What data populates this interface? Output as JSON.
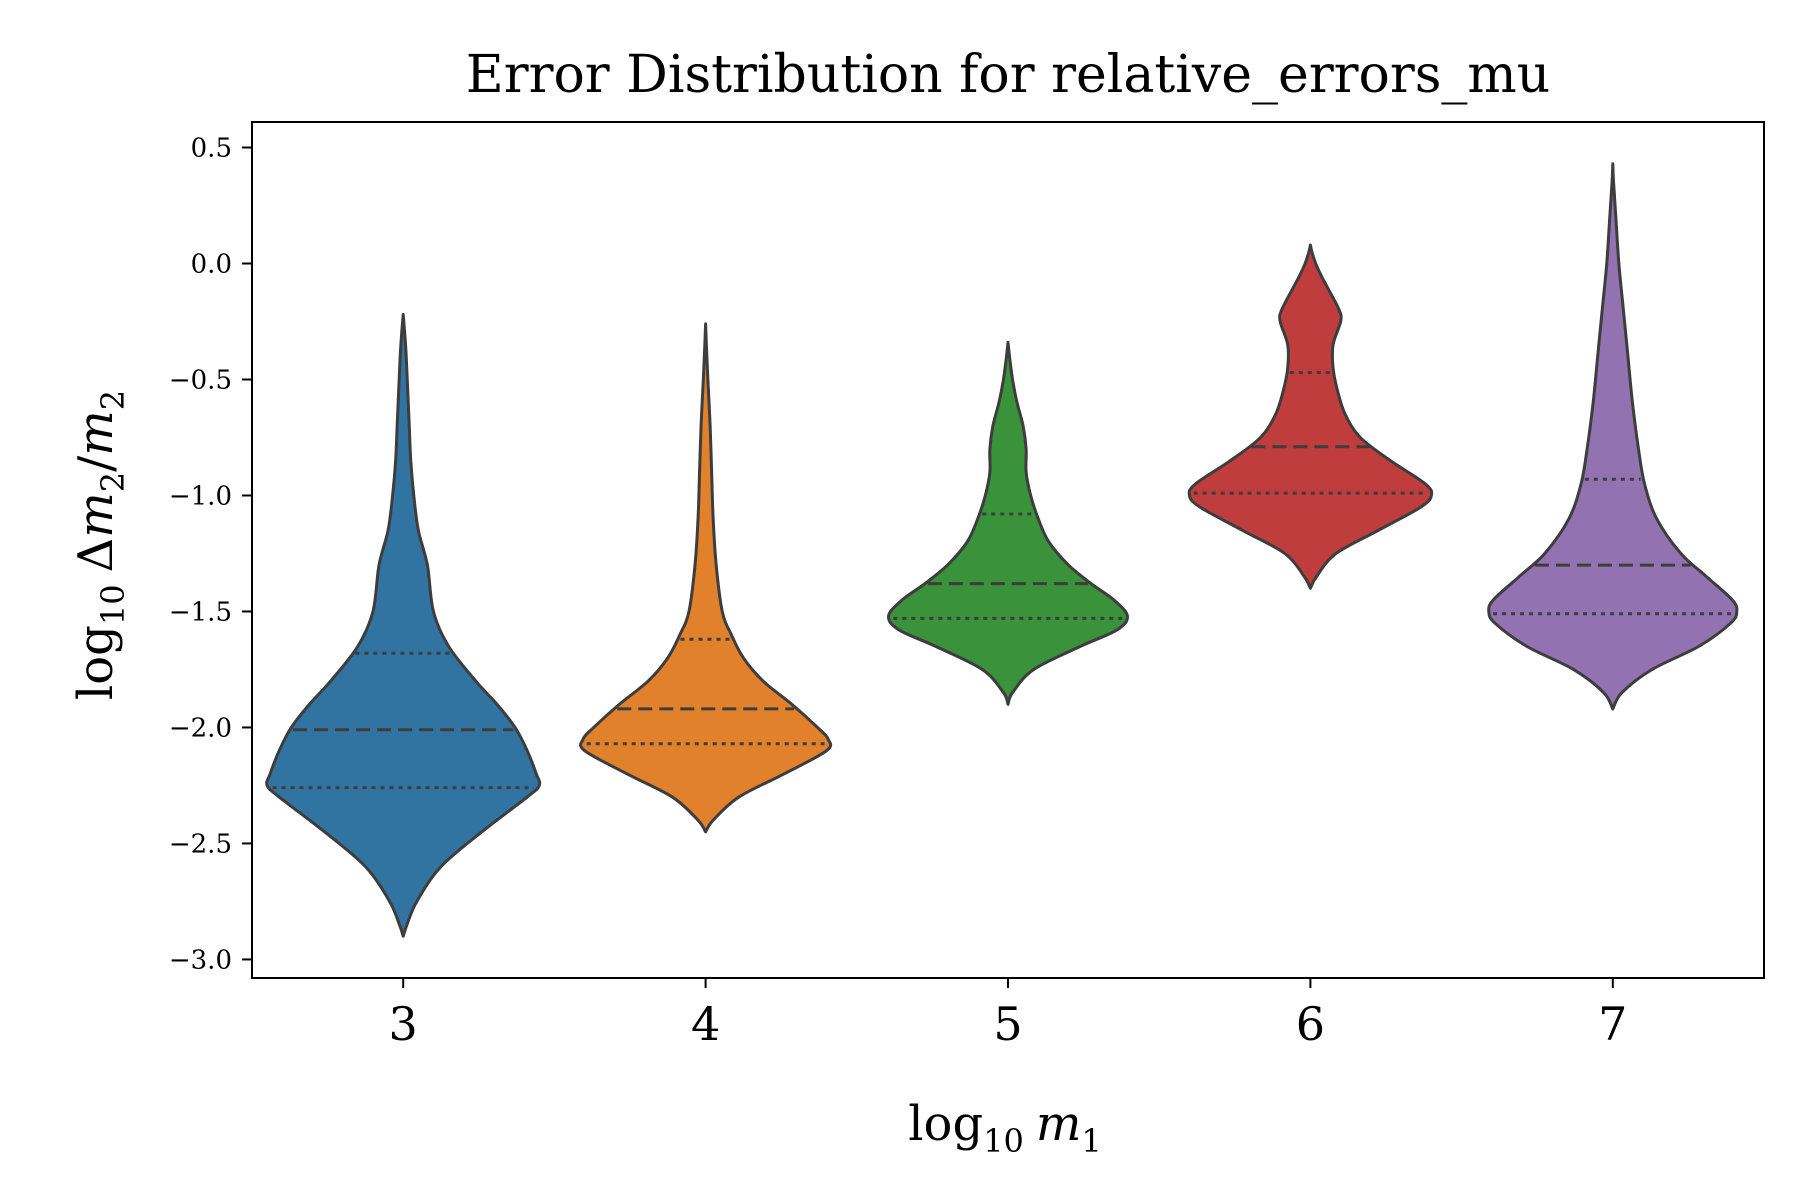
{
  "chart_data": {
    "type": "violin",
    "title": "Error Distribution for relative_errors_mu",
    "xlabel": {
      "base": "log",
      "sub": "10",
      "var": "m",
      "var_sub": "1"
    },
    "ylabel": {
      "base": "log",
      "sub": "10",
      "delta": "Δ",
      "var": "m",
      "var_sub": "2",
      "slash": "/",
      "var2": "m",
      "var2_sub": "2"
    },
    "ylim": [
      -3.08,
      0.61
    ],
    "yticks": [
      0.5,
      0.0,
      -0.5,
      -1.0,
      -1.5,
      -2.0,
      -2.5,
      -3.0
    ],
    "ytick_labels": [
      "0.5",
      "0.0",
      "−0.5",
      "−1.0",
      "−1.5",
      "−2.0",
      "−2.5",
      "−3.0"
    ],
    "categories": [
      "3",
      "4",
      "5",
      "6",
      "7"
    ],
    "grid": false,
    "series": [
      {
        "category": "3",
        "color": "#3274a1",
        "q1": -2.26,
        "median": -2.01,
        "q3": -1.68,
        "profile": [
          [
            -2.9,
            0.0
          ],
          [
            -2.85,
            0.025
          ],
          [
            -2.75,
            0.09
          ],
          [
            -2.6,
            0.25
          ],
          [
            -2.45,
            0.52
          ],
          [
            -2.3,
            0.82
          ],
          [
            -2.25,
            0.9
          ],
          [
            -2.2,
            0.88
          ],
          [
            -2.1,
            0.82
          ],
          [
            -2.0,
            0.74
          ],
          [
            -1.9,
            0.62
          ],
          [
            -1.8,
            0.48
          ],
          [
            -1.65,
            0.3
          ],
          [
            -1.5,
            0.2
          ],
          [
            -1.3,
            0.16
          ],
          [
            -1.15,
            0.1
          ],
          [
            -1.0,
            0.07
          ],
          [
            -0.85,
            0.05
          ],
          [
            -0.7,
            0.04
          ],
          [
            -0.55,
            0.03
          ],
          [
            -0.4,
            0.02
          ],
          [
            -0.3,
            0.01
          ],
          [
            -0.22,
            0.0
          ]
        ]
      },
      {
        "category": "4",
        "color": "#e1812c",
        "q1": -2.07,
        "median": -1.92,
        "q3": -1.62,
        "profile": [
          [
            -2.45,
            0.0
          ],
          [
            -2.4,
            0.05
          ],
          [
            -2.3,
            0.22
          ],
          [
            -2.2,
            0.52
          ],
          [
            -2.1,
            0.8
          ],
          [
            -2.05,
            0.81
          ],
          [
            -2.0,
            0.74
          ],
          [
            -1.9,
            0.57
          ],
          [
            -1.8,
            0.38
          ],
          [
            -1.7,
            0.25
          ],
          [
            -1.6,
            0.17
          ],
          [
            -1.5,
            0.11
          ],
          [
            -1.3,
            0.07
          ],
          [
            -1.1,
            0.05
          ],
          [
            -0.9,
            0.04
          ],
          [
            -0.7,
            0.03
          ],
          [
            -0.5,
            0.015
          ],
          [
            -0.35,
            0.005
          ],
          [
            -0.26,
            0.0
          ]
        ]
      },
      {
        "category": "5",
        "color": "#3a923a",
        "q1": -1.53,
        "median": -1.38,
        "q3": -1.08,
        "profile": [
          [
            -1.9,
            0.0
          ],
          [
            -1.85,
            0.03
          ],
          [
            -1.75,
            0.17
          ],
          [
            -1.65,
            0.48
          ],
          [
            -1.58,
            0.72
          ],
          [
            -1.52,
            0.79
          ],
          [
            -1.45,
            0.7
          ],
          [
            -1.38,
            0.55
          ],
          [
            -1.3,
            0.4
          ],
          [
            -1.2,
            0.27
          ],
          [
            -1.1,
            0.2
          ],
          [
            -1.0,
            0.15
          ],
          [
            -0.9,
            0.12
          ],
          [
            -0.8,
            0.12
          ],
          [
            -0.7,
            0.1
          ],
          [
            -0.6,
            0.06
          ],
          [
            -0.5,
            0.03
          ],
          [
            -0.4,
            0.01
          ],
          [
            -0.34,
            0.0
          ]
        ]
      },
      {
        "category": "6",
        "color": "#c03d3e",
        "q1": -0.99,
        "median": -0.79,
        "q3": -0.47,
        "profile": [
          [
            -1.4,
            0.0
          ],
          [
            -1.35,
            0.04
          ],
          [
            -1.25,
            0.17
          ],
          [
            -1.15,
            0.45
          ],
          [
            -1.05,
            0.73
          ],
          [
            -1.0,
            0.8
          ],
          [
            -0.95,
            0.76
          ],
          [
            -0.85,
            0.53
          ],
          [
            -0.75,
            0.33
          ],
          [
            -0.65,
            0.23
          ],
          [
            -0.55,
            0.18
          ],
          [
            -0.45,
            0.15
          ],
          [
            -0.35,
            0.15
          ],
          [
            -0.25,
            0.2
          ],
          [
            -0.2,
            0.19
          ],
          [
            -0.1,
            0.11
          ],
          [
            -0.05,
            0.07
          ],
          [
            0.0,
            0.035
          ],
          [
            0.05,
            0.01
          ],
          [
            0.08,
            0.0
          ]
        ]
      },
      {
        "category": "7",
        "color": "#9372b2",
        "q1": -1.51,
        "median": -1.3,
        "q3": -0.93,
        "profile": [
          [
            -1.92,
            0.0
          ],
          [
            -1.85,
            0.06
          ],
          [
            -1.75,
            0.26
          ],
          [
            -1.65,
            0.57
          ],
          [
            -1.55,
            0.78
          ],
          [
            -1.5,
            0.82
          ],
          [
            -1.45,
            0.79
          ],
          [
            -1.35,
            0.62
          ],
          [
            -1.25,
            0.45
          ],
          [
            -1.1,
            0.29
          ],
          [
            -0.95,
            0.21
          ],
          [
            -0.8,
            0.17
          ],
          [
            -0.6,
            0.13
          ],
          [
            -0.4,
            0.1
          ],
          [
            -0.2,
            0.07
          ],
          [
            0.0,
            0.04
          ],
          [
            0.2,
            0.02
          ],
          [
            0.35,
            0.005
          ],
          [
            0.43,
            0.0
          ]
        ]
      }
    ]
  }
}
